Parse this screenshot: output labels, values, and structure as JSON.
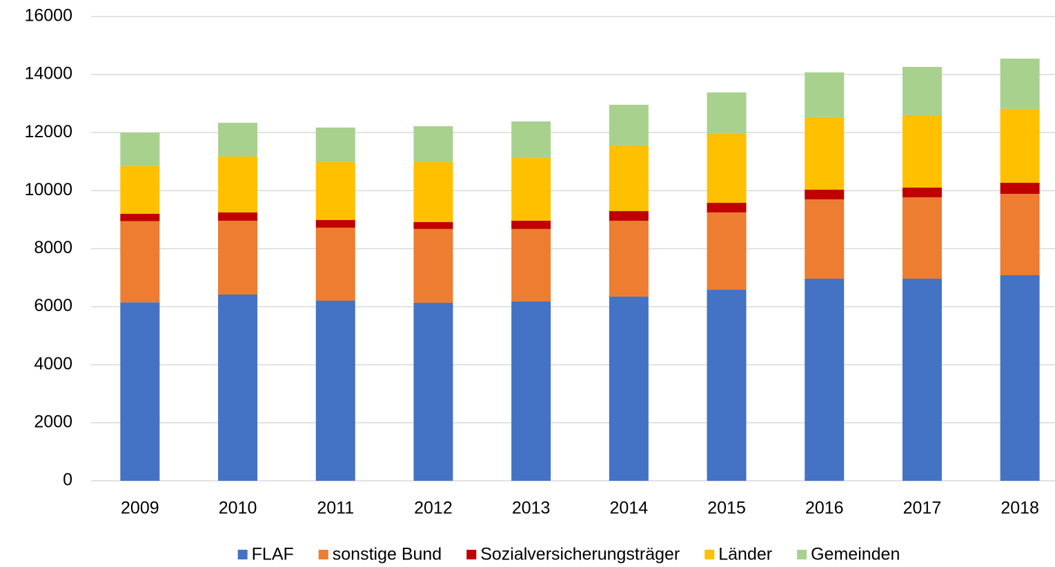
{
  "chart_data": {
    "type": "bar",
    "stacked": true,
    "categories": [
      "2009",
      "2010",
      "2011",
      "2012",
      "2013",
      "2014",
      "2015",
      "2016",
      "2017",
      "2018"
    ],
    "series": [
      {
        "name": "FLAF",
        "color": "#4472c4",
        "values": [
          6150,
          6420,
          6205,
          6135,
          6180,
          6350,
          6585,
          6965,
          6965,
          7085
        ]
      },
      {
        "name": "sonstige Bund",
        "color": "#ed7d31",
        "values": [
          2800,
          2540,
          2520,
          2545,
          2500,
          2610,
          2665,
          2735,
          2805,
          2805
        ]
      },
      {
        "name": "Sozialversicherungsträger",
        "color": "#c00000",
        "values": [
          250,
          290,
          265,
          235,
          285,
          335,
          330,
          335,
          335,
          380
        ]
      },
      {
        "name": "Länder",
        "color": "#ffc000",
        "values": [
          1650,
          1925,
          1995,
          2070,
          2160,
          2260,
          2380,
          2495,
          2495,
          2545
        ]
      },
      {
        "name": "Gemeinden",
        "color": "#a9d18e",
        "values": [
          1150,
          1165,
          1190,
          1235,
          1260,
          1405,
          1425,
          1545,
          1665,
          1735
        ]
      }
    ],
    "ylim": [
      0,
      16000
    ],
    "yticks": [
      0,
      2000,
      4000,
      6000,
      8000,
      10000,
      12000,
      14000,
      16000
    ],
    "grid": true,
    "legend": "bottom"
  }
}
